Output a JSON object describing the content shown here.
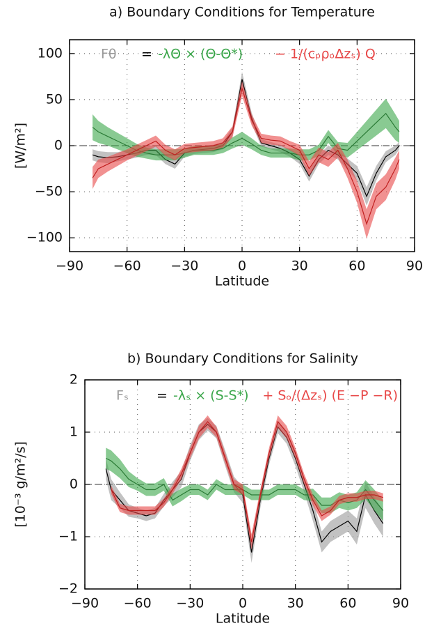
{
  "chart_data": [
    {
      "type": "line",
      "title": "a) Boundary Conditions for Temperature",
      "xlabel": "Latitude",
      "ylabel": "[W/m²]",
      "legend_operator": "=",
      "x": [
        -78,
        -75,
        -70,
        -65,
        -60,
        -55,
        -50,
        -45,
        -40,
        -35,
        -30,
        -25,
        -20,
        -15,
        -10,
        -5,
        0,
        5,
        10,
        15,
        20,
        25,
        30,
        35,
        40,
        45,
        50,
        55,
        60,
        65,
        70,
        75,
        80,
        82
      ],
      "series": [
        {
          "name": "Fθ",
          "color": "#999999",
          "line_color": "#000000",
          "values": [
            -10,
            -12,
            -13,
            -12,
            -10,
            -8,
            -5,
            -5,
            -15,
            -20,
            -8,
            -5,
            -4,
            -3,
            0,
            15,
            72,
            30,
            3,
            0,
            -3,
            -8,
            -15,
            -33,
            -15,
            -5,
            -10,
            -20,
            -30,
            -55,
            -30,
            -12,
            -5,
            0
          ],
          "spread": [
            6,
            6,
            6,
            5,
            5,
            5,
            5,
            5,
            5,
            5,
            4,
            4,
            4,
            4,
            4,
            5,
            8,
            6,
            4,
            4,
            4,
            4,
            5,
            6,
            5,
            5,
            5,
            6,
            8,
            10,
            8,
            6,
            5,
            4
          ]
        },
        {
          "name": "-λΘ × (Θ-Θ*)",
          "color": "#3aa64a",
          "line_color": "#2a7a35",
          "values": [
            20,
            15,
            10,
            5,
            0,
            -5,
            -8,
            -10,
            -10,
            -10,
            -8,
            -5,
            -5,
            -5,
            -3,
            3,
            8,
            2,
            -5,
            -8,
            -8,
            -8,
            -10,
            -10,
            -5,
            10,
            -3,
            -5,
            5,
            15,
            25,
            35,
            20,
            15
          ],
          "spread": [
            14,
            12,
            10,
            9,
            8,
            7,
            6,
            6,
            6,
            6,
            5,
            5,
            5,
            5,
            5,
            6,
            7,
            6,
            5,
            5,
            5,
            5,
            6,
            6,
            6,
            7,
            7,
            8,
            10,
            12,
            14,
            16,
            14,
            12
          ]
        },
        {
          "name": "−  1/(cₚρₒΔzₛ) Q",
          "color": "#e84848",
          "line_color": "#c02020",
          "values": [
            -35,
            -25,
            -20,
            -15,
            -10,
            -5,
            0,
            5,
            -5,
            -10,
            -3,
            -2,
            -1,
            0,
            3,
            15,
            62,
            28,
            8,
            6,
            5,
            0,
            -5,
            -25,
            -10,
            -15,
            -5,
            -25,
            -50,
            -85,
            -55,
            -45,
            -25,
            -15
          ],
          "spread": [
            12,
            10,
            8,
            7,
            6,
            6,
            6,
            6,
            6,
            6,
            5,
            5,
            5,
            5,
            5,
            6,
            8,
            6,
            5,
            5,
            5,
            5,
            6,
            8,
            8,
            8,
            8,
            10,
            12,
            16,
            14,
            14,
            12,
            10
          ]
        }
      ],
      "xlim": [
        -90,
        90
      ],
      "ylim": [
        -115,
        115
      ],
      "xticks": [
        {
          "value": -90,
          "label": "−90"
        },
        {
          "value": -60,
          "label": "−60"
        },
        {
          "value": -30,
          "label": "−30"
        },
        0,
        30,
        60,
        90
      ],
      "yticks": [
        {
          "value": -100,
          "label": "−100"
        },
        {
          "value": -50,
          "label": "−50"
        },
        0,
        50,
        100
      ],
      "grid": true,
      "zero_line": true
    },
    {
      "type": "line",
      "title": "b) Boundary Conditions for Salinity",
      "xlabel": "Latitude",
      "ylabel": "[10⁻³ g/m²/s]",
      "legend_operator": "=",
      "x": [
        -78,
        -75,
        -70,
        -65,
        -60,
        -55,
        -50,
        -45,
        -40,
        -35,
        -30,
        -25,
        -20,
        -15,
        -10,
        -5,
        0,
        5,
        10,
        15,
        20,
        25,
        30,
        35,
        40,
        45,
        50,
        55,
        60,
        65,
        70,
        75,
        80
      ],
      "series": [
        {
          "name": "Fₛ",
          "color": "#999999",
          "line_color": "#000000",
          "values": [
            0.3,
            -0.1,
            -0.3,
            -0.5,
            -0.55,
            -0.6,
            -0.55,
            -0.3,
            -0.1,
            0.1,
            0.6,
            1.0,
            1.15,
            1.0,
            0.5,
            0.0,
            -0.2,
            -1.3,
            -0.3,
            0.5,
            1.1,
            0.9,
            0.5,
            0.0,
            -0.5,
            -1.1,
            -0.9,
            -0.8,
            -0.7,
            -0.9,
            -0.2,
            -0.5,
            -0.75
          ],
          "spread": [
            0.2,
            0.2,
            0.15,
            0.12,
            0.1,
            0.1,
            0.1,
            0.12,
            0.15,
            0.15,
            0.15,
            0.15,
            0.12,
            0.12,
            0.15,
            0.15,
            0.15,
            0.2,
            0.15,
            0.12,
            0.12,
            0.12,
            0.15,
            0.15,
            0.2,
            0.2,
            0.2,
            0.2,
            0.2,
            0.25,
            0.25,
            0.25,
            0.25
          ]
        },
        {
          "name": "-λₛ × (S-S*)",
          "color": "#3aa64a",
          "line_color": "#2a7a35",
          "values": [
            0.5,
            0.45,
            0.3,
            0.1,
            0.0,
            -0.1,
            -0.1,
            0.0,
            -0.3,
            -0.2,
            -0.1,
            -0.1,
            -0.2,
            0.0,
            -0.1,
            -0.1,
            -0.1,
            -0.2,
            -0.2,
            -0.2,
            -0.1,
            -0.1,
            -0.1,
            -0.2,
            -0.2,
            -0.4,
            -0.4,
            -0.3,
            -0.35,
            -0.3,
            -0.1,
            -0.3,
            -0.5
          ],
          "spread": [
            0.2,
            0.2,
            0.18,
            0.15,
            0.12,
            0.12,
            0.12,
            0.12,
            0.12,
            0.12,
            0.1,
            0.1,
            0.1,
            0.1,
            0.1,
            0.1,
            0.1,
            0.1,
            0.1,
            0.1,
            0.1,
            0.1,
            0.1,
            0.1,
            0.12,
            0.15,
            0.15,
            0.15,
            0.15,
            0.15,
            0.18,
            0.2,
            0.2
          ]
        },
        {
          "name": "+ Sₒ/(Δzₛ) (E −P −R)",
          "color": "#e84848",
          "line_color": "#c02020",
          "values": [
            null,
            -0.1,
            -0.45,
            -0.5,
            -0.5,
            -0.5,
            -0.5,
            -0.35,
            -0.1,
            0.2,
            0.6,
            1.0,
            1.2,
            1.0,
            0.5,
            0.0,
            -0.1,
            -1.1,
            -0.2,
            0.6,
            1.2,
            1.0,
            0.6,
            0.1,
            -0.3,
            -0.6,
            -0.5,
            -0.3,
            -0.25,
            -0.25,
            -0.2,
            -0.2,
            -0.25
          ],
          "spread": [
            null,
            0.08,
            0.08,
            0.08,
            0.08,
            0.08,
            0.08,
            0.08,
            0.08,
            0.1,
            0.1,
            0.12,
            0.12,
            0.1,
            0.1,
            0.1,
            0.1,
            0.15,
            0.1,
            0.1,
            0.12,
            0.12,
            0.1,
            0.1,
            0.1,
            0.1,
            0.08,
            0.08,
            0.08,
            0.08,
            0.08,
            0.08,
            0.08
          ]
        }
      ],
      "xlim": [
        -90,
        90
      ],
      "ylim": [
        -2,
        2
      ],
      "xticks": [
        {
          "value": -90,
          "label": "−90"
        },
        {
          "value": -60,
          "label": "−60"
        },
        {
          "value": -30,
          "label": "−30"
        },
        0,
        30,
        60,
        90
      ],
      "yticks": [
        {
          "value": -2,
          "label": "−2"
        },
        {
          "value": -1,
          "label": "−1"
        },
        0,
        1,
        2
      ],
      "grid": true,
      "zero_line": true
    }
  ]
}
